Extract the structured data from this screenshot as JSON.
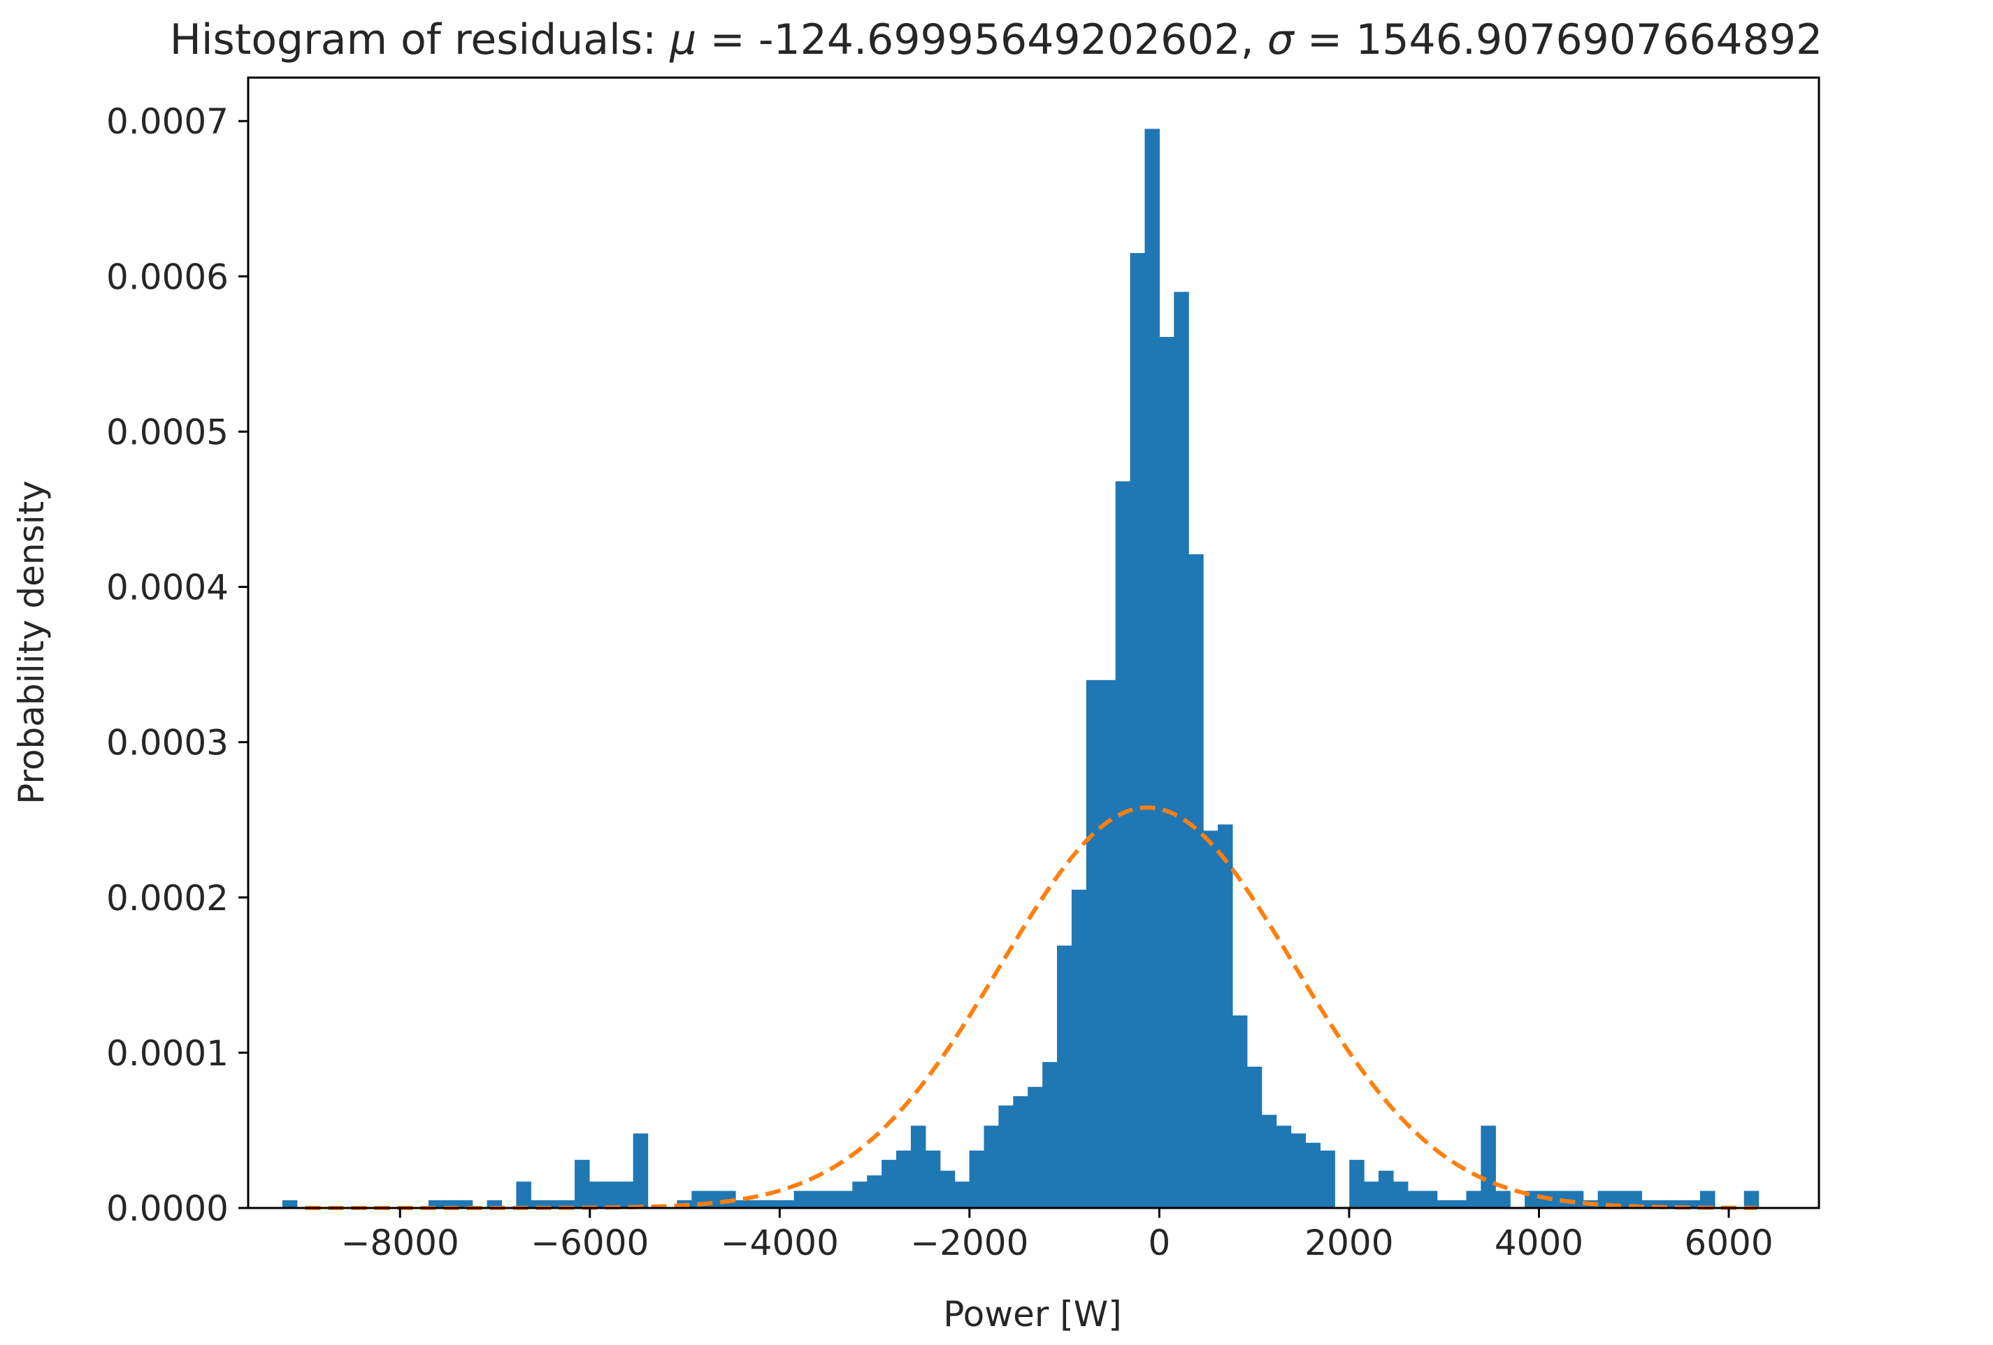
{
  "chart_data": {
    "type": "bar",
    "title": "Histogram of residuals: μ = -124.69995649202602, σ = 1546.9076907664892",
    "title_prefix": "Histogram of residuals: ",
    "title_mu_symbol": "μ",
    "title_mu_value": "-124.69995649202602",
    "title_sigma_symbol": "σ",
    "title_sigma_value": "1546.9076907664892",
    "xlabel": "Power [W]",
    "ylabel": "Probability density",
    "xlim": [
      -9600,
      6950
    ],
    "ylim": [
      0,
      0.000728
    ],
    "grid": false,
    "colors": {
      "bars": "#1f77b4",
      "fit": "#ff7f0e"
    },
    "x_ticks": [
      {
        "value": -8000,
        "label": "−8000"
      },
      {
        "value": -6000,
        "label": "−6000"
      },
      {
        "value": -4000,
        "label": "−4000"
      },
      {
        "value": -2000,
        "label": "−2000"
      },
      {
        "value": 0,
        "label": "0"
      },
      {
        "value": 2000,
        "label": "2000"
      },
      {
        "value": 4000,
        "label": "4000"
      },
      {
        "value": 6000,
        "label": "6000"
      }
    ],
    "y_ticks": [
      {
        "value": 0,
        "label": "0.0000"
      },
      {
        "value": 0.0001,
        "label": "0.0001"
      },
      {
        "value": 0.0002,
        "label": "0.0002"
      },
      {
        "value": 0.0003,
        "label": "0.0003"
      },
      {
        "value": 0.0004,
        "label": "0.0004"
      },
      {
        "value": 0.0005,
        "label": "0.0005"
      },
      {
        "value": 0.0006,
        "label": "0.0006"
      },
      {
        "value": 0.0007,
        "label": "0.0007"
      }
    ],
    "bin_start": -9240,
    "bin_width": 154,
    "values": [
      5e-06,
      0.0,
      0.0,
      0.0,
      0.0,
      0.0,
      0.0,
      0.0,
      0.0,
      0.0,
      5e-06,
      5e-06,
      5e-06,
      0.0,
      5e-06,
      0.0,
      1.7e-05,
      5e-06,
      5e-06,
      5e-06,
      3.1e-05,
      1.7e-05,
      1.7e-05,
      1.7e-05,
      4.8e-05,
      0.0,
      0.0,
      5e-06,
      1.1e-05,
      1.1e-05,
      1.1e-05,
      5e-06,
      5e-06,
      5e-06,
      5e-06,
      1.1e-05,
      1.1e-05,
      1.1e-05,
      1.1e-05,
      1.7e-05,
      2.1e-05,
      3.1e-05,
      3.7e-05,
      5.3e-05,
      3.7e-05,
      2.4e-05,
      1.7e-05,
      3.7e-05,
      5.3e-05,
      6.6e-05,
      7.2e-05,
      7.8e-05,
      9.4e-05,
      0.000169,
      0.000205,
      0.00034,
      0.00034,
      0.000468,
      0.000615,
      0.000695,
      0.000561,
      0.00059,
      0.000421,
      0.000243,
      0.000247,
      0.000124,
      9.1e-05,
      6e-05,
      5.3e-05,
      4.8e-05,
      4.2e-05,
      3.7e-05,
      0.0,
      3.1e-05,
      1.7e-05,
      2.4e-05,
      1.7e-05,
      1.1e-05,
      1.1e-05,
      5e-06,
      5e-06,
      1.1e-05,
      5.3e-05,
      1.1e-05,
      0.0,
      1.1e-05,
      1.1e-05,
      1.1e-05,
      1.1e-05,
      5e-06,
      1.1e-05,
      1.1e-05,
      1.1e-05,
      5e-06,
      5e-06,
      5e-06,
      5e-06,
      1.1e-05,
      0.0,
      0.0,
      1.1e-05
    ],
    "series": [
      {
        "kind": "histogram"
      },
      {
        "kind": "normal-fit",
        "mu": -124.69995649202602,
        "sigma": 1546.9076907664892
      }
    ]
  }
}
